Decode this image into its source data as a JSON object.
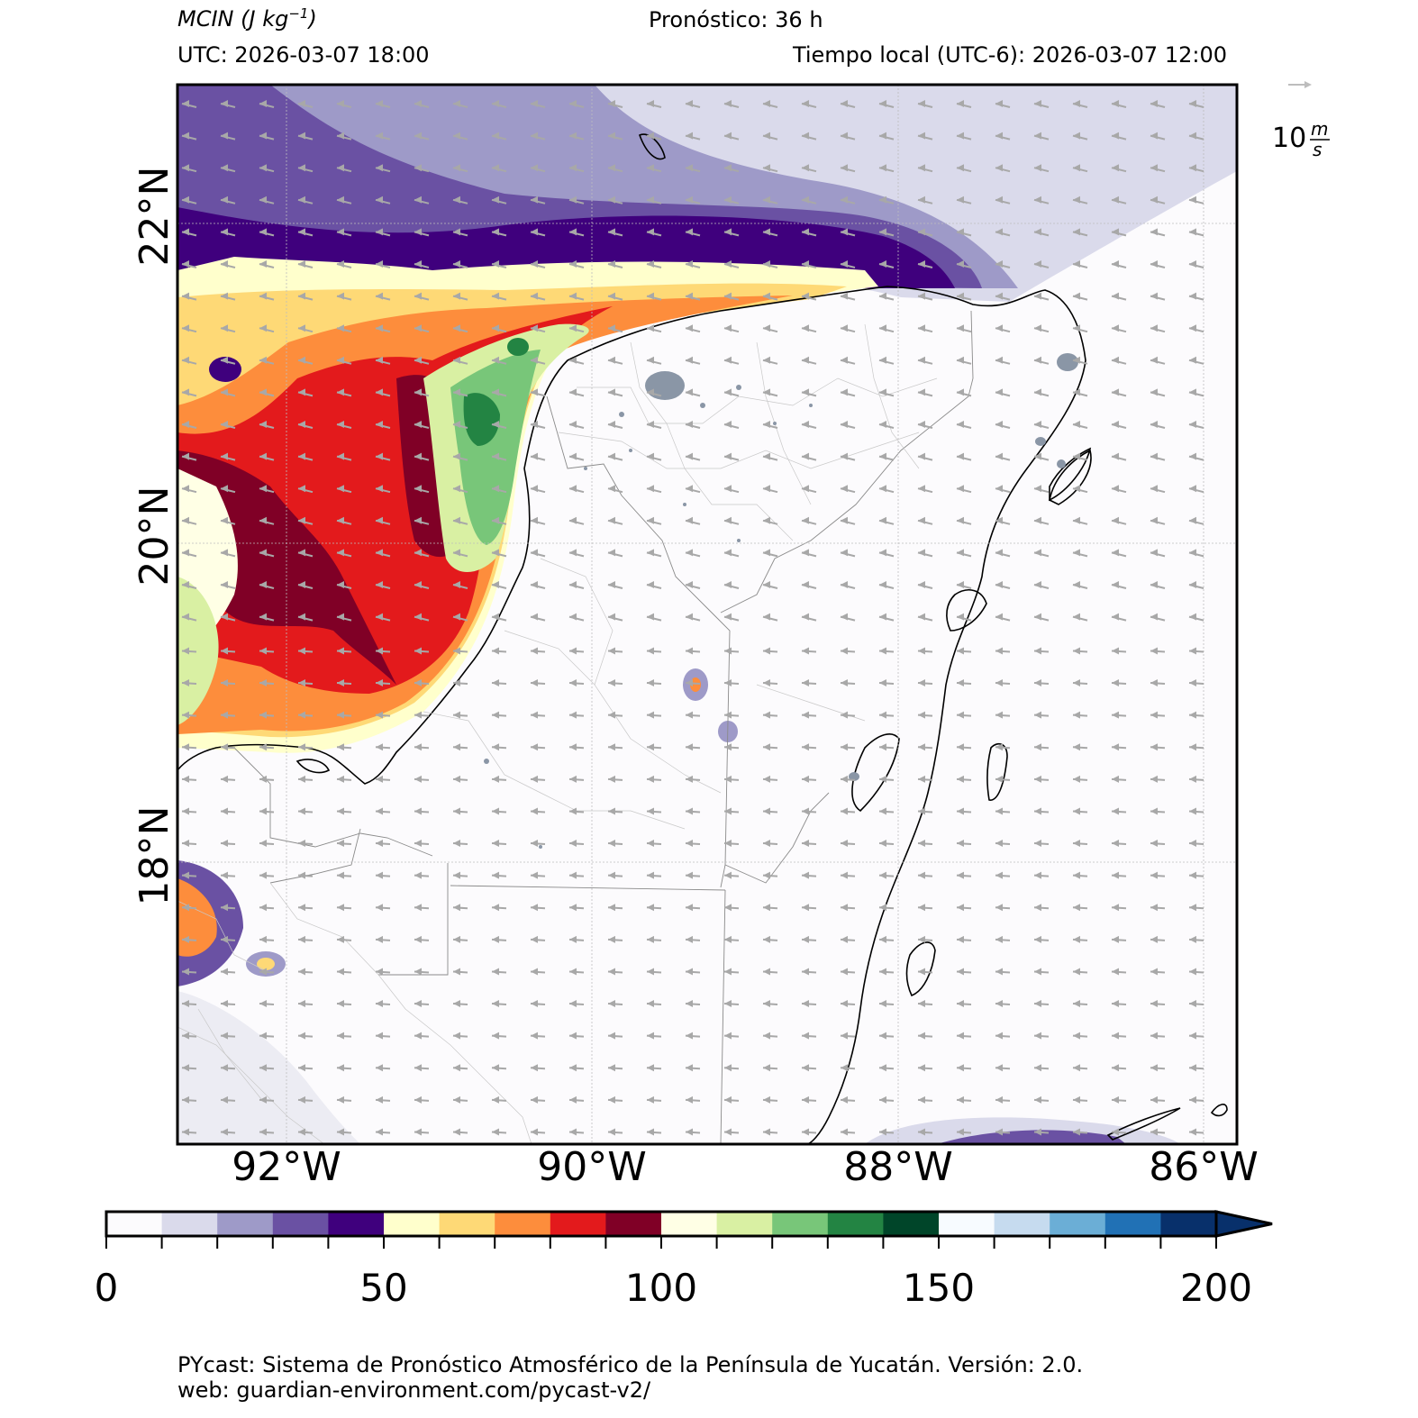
{
  "header": {
    "variable": "MCIN",
    "units": "(J kg",
    "units_exp": "−1",
    "units_close": ")",
    "forecast": "Pronóstico: 36 h",
    "utc": "UTC:  2026-03-07 18:00",
    "local": "Tiempo local (UTC-6): 2026-03-07 12:00"
  },
  "wind_key": {
    "value": "10",
    "unit_top": "m",
    "unit_bottom": "s"
  },
  "map": {
    "lon_labels": [
      "92°W",
      "90°W",
      "88°W",
      "86°W"
    ],
    "lat_labels": [
      "22°N",
      "20°N",
      "18°N"
    ],
    "wind_direction": "from east-southeast",
    "gridlines": true
  },
  "colorbar": {
    "ticks": [
      "0",
      "50",
      "100",
      "150",
      "200"
    ],
    "extend": "max",
    "colors": [
      "#fcfbfd",
      "#dadaeb",
      "#9e9ac8",
      "#6a51a3",
      "#3f007d",
      "#ffffcc",
      "#fed976",
      "#fd8d3c",
      "#e31a1c",
      "#800026",
      "#ffffe5",
      "#d9f0a3",
      "#78c679",
      "#238443",
      "#004529",
      "#f7fbff",
      "#c6dbef",
      "#6baed6",
      "#2171b5",
      "#08306b"
    ]
  },
  "footer": {
    "line1": "PYcast: Sistema de Pronóstico Atmosférico de la Península de Yucatán. Versión: 2.0.",
    "line2": "web: guardian-environment.com/pycast-v2/"
  }
}
